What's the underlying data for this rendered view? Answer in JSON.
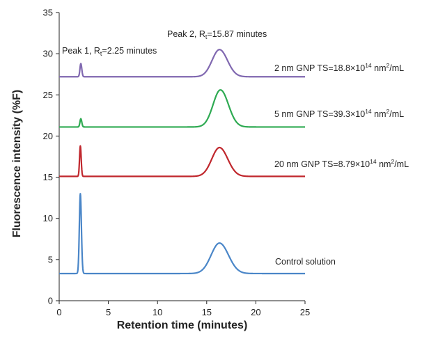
{
  "chart_data": {
    "type": "line",
    "xlabel": "Retention time (minutes)",
    "ylabel": "Fluorescence intensity (%F)",
    "xlim": [
      0,
      25
    ],
    "ylim": [
      0,
      35
    ],
    "xticks": [
      "0",
      "5",
      "10",
      "15",
      "20",
      "25"
    ],
    "yticks": [
      "0",
      "5",
      "10",
      "15",
      "20",
      "25",
      "30",
      "35"
    ],
    "grid": false,
    "legend": "none",
    "annotations": {
      "peak1": {
        "prefix": "Peak 1, R",
        "sub": "t",
        "suffix": "=2.25 minutes"
      },
      "peak2": {
        "prefix": "Peak 2, R",
        "sub": "t",
        "suffix": "=15.87 minutes"
      }
    },
    "series": [
      {
        "label_prefix": "2 nm GNP TS=18.8×10",
        "label_sup1": "14",
        "label_mid": " nm",
        "label_sup2": "2",
        "label_suffix": "/mL",
        "color": "#8068b0",
        "baseline": 27.2,
        "peaks": [
          {
            "rt": 2.2,
            "height": 1.6,
            "width": 0.09
          },
          {
            "rt": 16.3,
            "height": 3.3,
            "width": 0.75
          }
        ]
      },
      {
        "label_prefix": "5 nm GNP TS=39.3×10",
        "label_sup1": "14",
        "label_mid": " nm",
        "label_sup2": "2",
        "label_suffix": "/mL",
        "color": "#2eaa52",
        "baseline": 21.1,
        "peaks": [
          {
            "rt": 2.2,
            "height": 1.0,
            "width": 0.09
          },
          {
            "rt": 16.4,
            "height": 4.5,
            "width": 0.75
          }
        ]
      },
      {
        "label_prefix": "20 nm GNP TS=8.79×10",
        "label_sup1": "14",
        "label_mid": " nm",
        "label_sup2": "2",
        "label_suffix": "/mL",
        "color": "#c0272d",
        "baseline": 15.1,
        "peaks": [
          {
            "rt": 2.15,
            "height": 3.7,
            "width": 0.08
          },
          {
            "rt": 16.3,
            "height": 3.5,
            "width": 0.78
          }
        ]
      },
      {
        "label_prefix": "Control solution",
        "color": "#4a86c8",
        "baseline": 3.3,
        "peaks": [
          {
            "rt": 2.15,
            "height": 9.7,
            "width": 0.1
          },
          {
            "rt": 16.3,
            "height": 3.7,
            "width": 0.85
          }
        ]
      }
    ]
  }
}
